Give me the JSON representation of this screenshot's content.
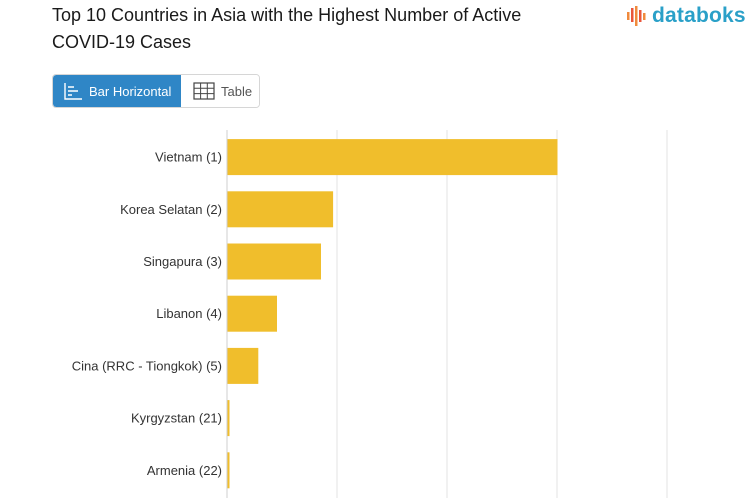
{
  "header": {
    "title": "Top 10 Countries in Asia with the Highest Number of Active COVID-19 Cases",
    "logo_text": "databoks"
  },
  "tabs": [
    {
      "label": "Bar Horizontal",
      "icon": "bar-chart-icon",
      "active": true
    },
    {
      "label": "Table",
      "icon": "table-icon",
      "active": false
    }
  ],
  "colors": {
    "bar": "#f0be2c",
    "tab_active": "#2f86c6",
    "logo": "#2aa0c8",
    "grid": "#e3e3e3"
  },
  "chart_data": {
    "type": "bar",
    "orientation": "horizontal",
    "categories": [
      "Vietnam (1)",
      "Korea Selatan (2)",
      "Singapura (3)",
      "Libanon (4)",
      "Cina (RRC - Tiongkok) (5)",
      "Kyrgyzstan (21)",
      "Armenia (22)"
    ],
    "values": [
      3000,
      960,
      850,
      450,
      280,
      15,
      12
    ],
    "xlim": [
      0,
      4000
    ],
    "grid": true,
    "title": "Top 10 Countries in Asia with the Highest Number of Active COVID-19 Cases"
  }
}
